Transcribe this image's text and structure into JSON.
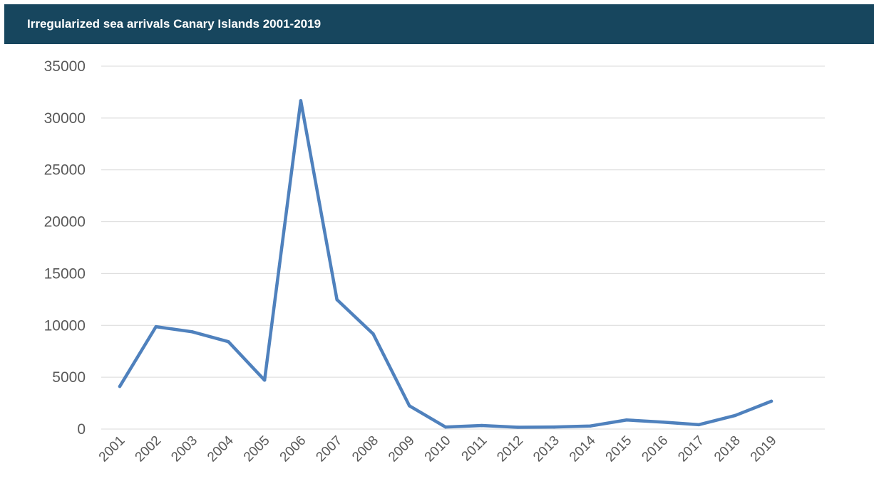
{
  "header": {
    "title": "Irregularized sea arrivals Canary Islands 2001-2019"
  },
  "colors": {
    "header_bg": "#17465e",
    "line": "#4f81bd",
    "grid": "#d9d9d9",
    "axis_text": "#595959"
  },
  "chart_data": {
    "type": "line",
    "title": "Irregularized sea arrivals Canary Islands 2001-2019",
    "xlabel": "",
    "ylabel": "",
    "categories": [
      "2001",
      "2002",
      "2003",
      "2004",
      "2005",
      "2006",
      "2007",
      "2008",
      "2009",
      "2010",
      "2011",
      "2012",
      "2013",
      "2014",
      "2015",
      "2016",
      "2017",
      "2018",
      "2019"
    ],
    "series": [
      {
        "values": [
          4112,
          9875,
          9382,
          8426,
          4715,
          31678,
          12478,
          9181,
          2246,
          196,
          340,
          173,
          196,
          296,
          874,
          671,
          421,
          1307,
          2687
        ]
      }
    ],
    "ylim": [
      0,
      35000
    ],
    "yticks": [
      0,
      5000,
      10000,
      15000,
      20000,
      25000,
      30000,
      35000
    ],
    "grid": true,
    "legend": "none"
  }
}
